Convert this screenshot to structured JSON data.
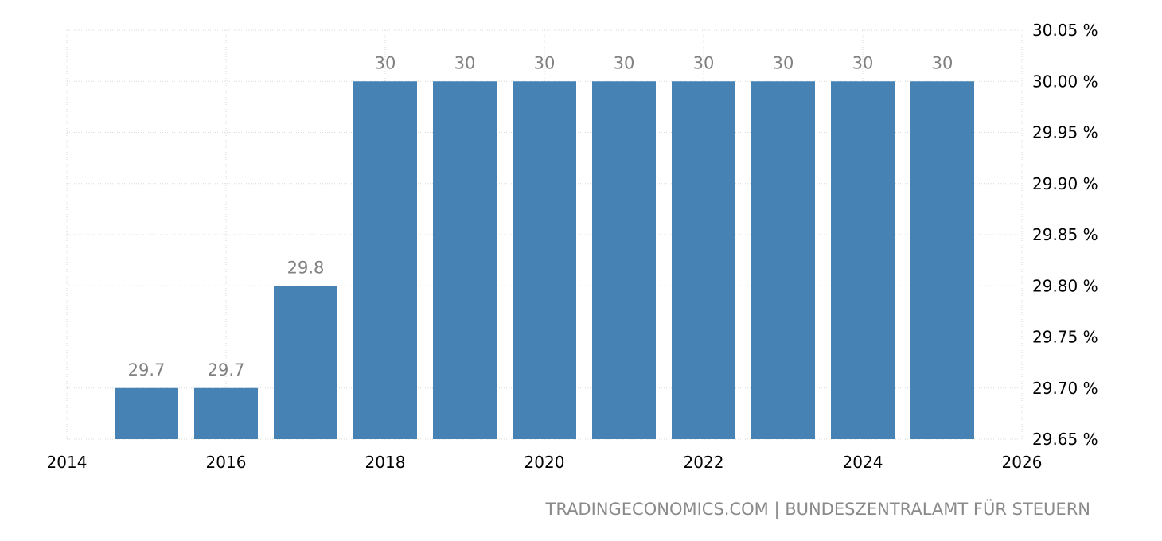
{
  "source_text": "TRADINGECONOMICS.COM | BUNDESZENTRALAMT FÜR STEUERN",
  "chart_data": {
    "type": "bar",
    "x": [
      2015,
      2016,
      2017,
      2018,
      2019,
      2020,
      2021,
      2022,
      2023,
      2024,
      2025
    ],
    "values": [
      29.7,
      29.7,
      29.8,
      30,
      30,
      30,
      30,
      30,
      30,
      30,
      30
    ],
    "data_labels": [
      "29.7",
      "29.7",
      "29.8",
      "30",
      "30",
      "30",
      "30",
      "30",
      "30",
      "30",
      "30"
    ],
    "x_ticks": [
      "2014",
      "2016",
      "2018",
      "2020",
      "2022",
      "2024",
      "2026"
    ],
    "y_ticks": [
      "29.65 %",
      "29.70 %",
      "29.75 %",
      "29.80 %",
      "29.85 %",
      "29.90 %",
      "29.95 %",
      "30.00 %",
      "30.05 %"
    ],
    "xlim": [
      2014,
      2026
    ],
    "ylim": [
      29.65,
      30.05
    ],
    "y_axis_side": "right",
    "grid": true,
    "bar_color": "#4682b4"
  }
}
